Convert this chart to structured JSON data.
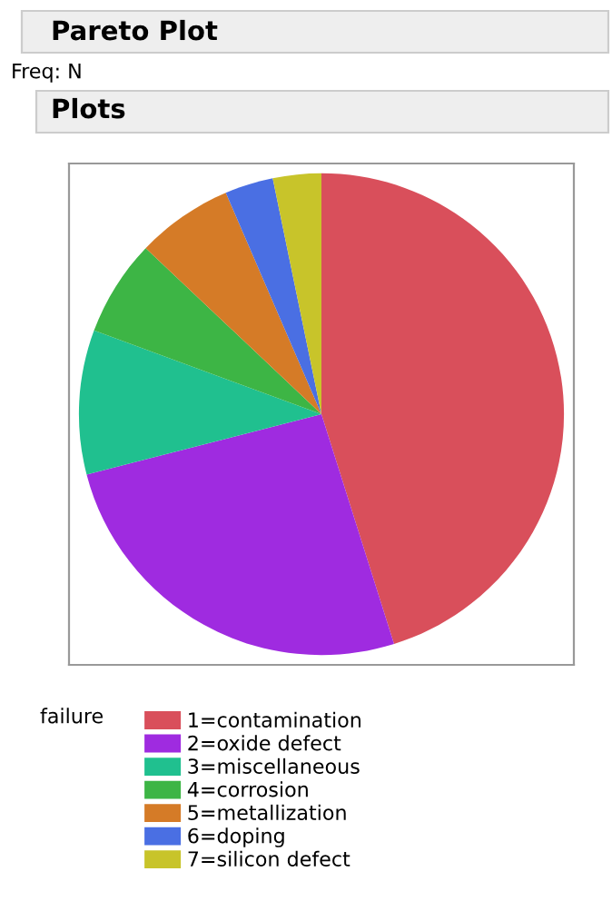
{
  "chart_data": {
    "type": "pie",
    "title": "Pareto Plot",
    "subtitle": "Freq: N",
    "annotations": [
      "Plots"
    ],
    "legend_title": "failure",
    "legend": "bottom left",
    "categories": [
      "1=contamination",
      "2=oxide defect",
      "3=miscellaneous",
      "4=corrosion",
      "5=metallization",
      "6=doping",
      "7=silicon defect"
    ],
    "values": [
      45.16,
      25.81,
      9.68,
      6.45,
      6.45,
      3.23,
      3.22
    ],
    "colors": [
      "#d94f5b",
      "#9f2be0",
      "#20c08f",
      "#3db545",
      "#d57b27",
      "#4a6fe3",
      "#c8c42a"
    ]
  }
}
